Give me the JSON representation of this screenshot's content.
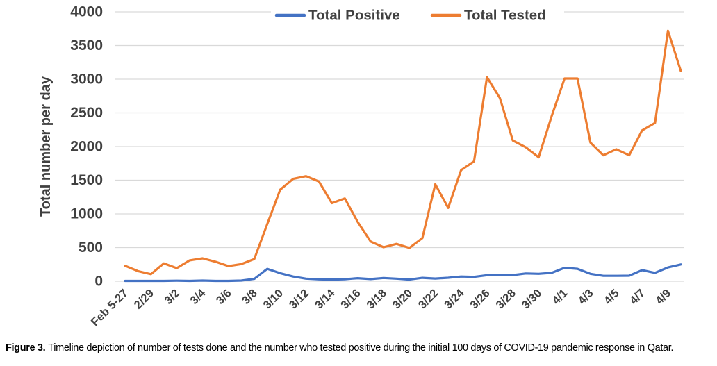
{
  "figure": {
    "caption": {
      "label": "Figure 3.",
      "text": "Timeline depiction of number of tests done and the number who tested positive during the initial 100 days of COVID-19 pandemic response in Qatar."
    }
  },
  "chart_data": {
    "type": "line",
    "title": "",
    "xlabel": "",
    "ylabel": "Total number per day",
    "ylim": [
      0,
      4000
    ],
    "ytick_step": 500,
    "grid": true,
    "legend_position": "top",
    "x_tick_labels": [
      "Feb 5-27",
      "2/29",
      "3/2",
      "3/4",
      "3/6",
      "3/8",
      "3/10",
      "3/12",
      "3/14",
      "3/16",
      "3/18",
      "3/20",
      "3/22",
      "3/24",
      "3/26",
      "3/28",
      "3/30",
      "4/1",
      "4/3",
      "4/5",
      "4/7",
      "4/9"
    ],
    "points_per_tick": 2,
    "note": "daily data points; axis labels shown every second point",
    "series": [
      {
        "name": "Total Positive",
        "color": "#4472C4",
        "values": [
          5,
          5,
          5,
          5,
          8,
          5,
          10,
          5,
          5,
          10,
          35,
          185,
          120,
          70,
          38,
          28,
          25,
          30,
          45,
          32,
          48,
          38,
          25,
          50,
          40,
          52,
          70,
          65,
          90,
          95,
          92,
          115,
          110,
          125,
          200,
          185,
          110,
          80,
          80,
          82,
          165,
          125,
          205,
          250
        ]
      },
      {
        "name": "Total Tested",
        "color": "#ED7D31",
        "values": [
          230,
          150,
          105,
          265,
          195,
          310,
          340,
          290,
          225,
          255,
          330,
          850,
          1360,
          1520,
          1560,
          1480,
          1160,
          1230,
          880,
          590,
          505,
          555,
          495,
          640,
          1440,
          1090,
          1650,
          1780,
          3030,
          2720,
          2090,
          1990,
          1840,
          2450,
          3010,
          3010,
          2060,
          1870,
          1960,
          1870,
          2240,
          2350,
          3720,
          3120
        ]
      }
    ],
    "colors": {
      "gridline": "#D9D9D9",
      "axis_text": "#404040"
    }
  }
}
